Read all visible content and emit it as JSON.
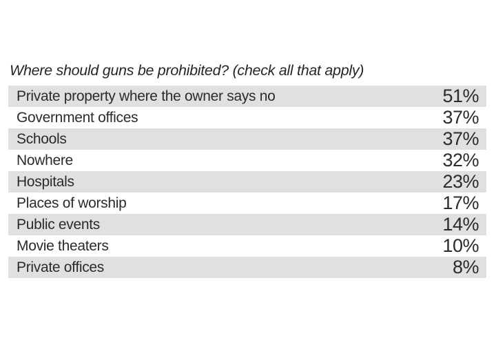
{
  "title": "Where should guns be prohibited? (check all that apply)",
  "colors": {
    "background": "#ffffff",
    "row_shaded": "#e0e0e0",
    "text": "#2b2b2b"
  },
  "chart_data": {
    "type": "table",
    "title": "Where should guns be prohibited? (check all that apply)",
    "categories": [
      "Private property where the owner says no",
      "Government offices",
      "Schools",
      "Nowhere",
      "Hospitals",
      "Places of worship",
      "Public events",
      "Movie theaters",
      "Private offices"
    ],
    "values": [
      51,
      37,
      37,
      32,
      23,
      17,
      14,
      10,
      8
    ],
    "value_labels": [
      "51%",
      "37%",
      "37%",
      "32%",
      "23%",
      "17%",
      "14%",
      "10%",
      "8%"
    ],
    "layout": {
      "alternating_rows": true,
      "first_row_shaded": true,
      "value_alignment": "right",
      "grid": false,
      "legend": "none"
    }
  }
}
